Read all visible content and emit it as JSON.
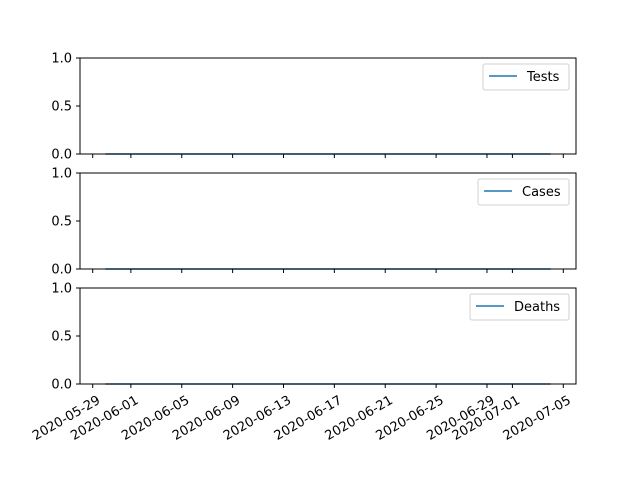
{
  "chart_data": {
    "type": "line",
    "layout": "3 vertically stacked subplots sharing the x axis (date)",
    "x_tick_labels": [
      "2020-05-29",
      "2020-06-01",
      "2020-06-05",
      "2020-06-09",
      "2020-06-13",
      "2020-06-17",
      "2020-06-21",
      "2020-06-25",
      "2020-06-29",
      "2020-07-01",
      "2020-07-05"
    ],
    "x_range": [
      "2020-05-28",
      "2020-07-06"
    ],
    "x_start": "2020-05-30",
    "x_end": "2020-07-04",
    "y_ticks": [
      "0.0",
      "0.5",
      "1.0"
    ],
    "ylim": [
      0,
      1
    ],
    "grid": false,
    "legend_position": "top-right",
    "series_color": "#1f77b4",
    "panels": [
      {
        "name": "Tests",
        "value": 0
      },
      {
        "name": "Cases",
        "value": 0
      },
      {
        "name": "Deaths",
        "value": 0
      }
    ]
  }
}
